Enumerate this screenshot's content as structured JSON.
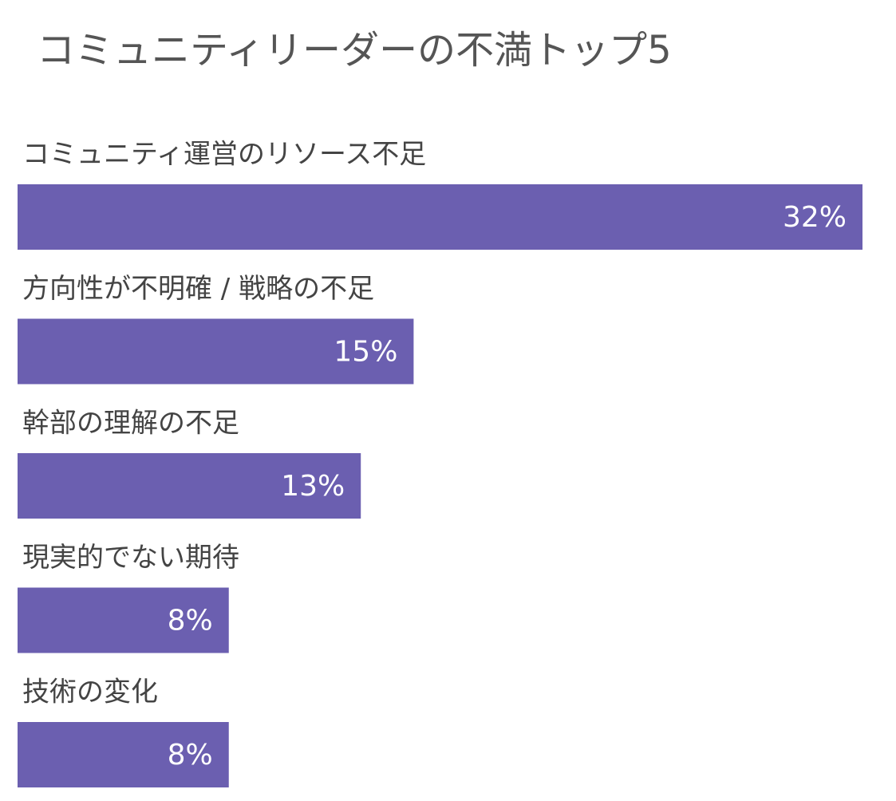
{
  "chart_data": {
    "type": "bar",
    "orientation": "horizontal",
    "title": "コミュニティリーダーの不満トップ5",
    "categories": [
      "コミュニティ運営のリソース不足",
      "方向性が不明確 / 戦略の不足",
      "幹部の理解の不足",
      "現実的でない期待",
      "技術の変化"
    ],
    "values": [
      32,
      15,
      13,
      8,
      8
    ],
    "value_labels": [
      "32%",
      "15%",
      "13%",
      "8%",
      "8%"
    ],
    "color": "#6b5fb0"
  }
}
